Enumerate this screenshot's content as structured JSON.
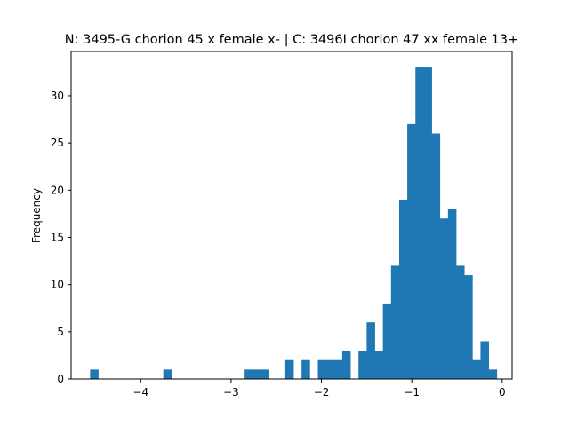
{
  "chart_data": {
    "type": "bar",
    "title": "N: 3495-G chorion 45 x female x- | C: 3496I chorion 47 xx female 13+",
    "xlabel": "",
    "ylabel": "Frequency",
    "xlim": [
      -4.77,
      0.11
    ],
    "ylim": [
      0,
      34.7
    ],
    "grid": false,
    "color": "#1f77b4",
    "xticks": [
      {
        "value": -4,
        "label": "−4"
      },
      {
        "value": -3,
        "label": "−3"
      },
      {
        "value": -2,
        "label": "−2"
      },
      {
        "value": -1,
        "label": "−1"
      },
      {
        "value": 0,
        "label": "0"
      }
    ],
    "yticks": [
      {
        "value": 0,
        "label": "0"
      },
      {
        "value": 5,
        "label": "5"
      },
      {
        "value": 10,
        "label": "10"
      },
      {
        "value": 15,
        "label": "15"
      },
      {
        "value": 20,
        "label": "20"
      },
      {
        "value": 25,
        "label": "25"
      },
      {
        "value": 30,
        "label": "30"
      }
    ],
    "bin_edges": [
      -4.56,
      -4.47,
      -4.38,
      -4.29,
      -4.2,
      -4.11,
      -4.02,
      -3.93,
      -3.84,
      -3.75,
      -3.66,
      -3.57,
      -3.48,
      -3.39,
      -3.3,
      -3.21,
      -3.12,
      -3.03,
      -2.94,
      -2.85,
      -2.76,
      -2.67,
      -2.58,
      -2.49,
      -2.4,
      -2.31,
      -2.22,
      -2.13,
      -2.04,
      -1.95,
      -1.86,
      -1.77,
      -1.68,
      -1.59,
      -1.5,
      -1.41,
      -1.32,
      -1.23,
      -1.14,
      -1.05,
      -0.96,
      -0.87,
      -0.78,
      -0.69,
      -0.6,
      -0.51,
      -0.42,
      -0.33,
      -0.24,
      -0.15,
      -0.06
    ],
    "values": [
      1,
      0,
      0,
      0,
      0,
      0,
      0,
      0,
      0,
      1,
      0,
      0,
      0,
      0,
      0,
      0,
      0,
      0,
      0,
      1,
      1,
      1,
      0,
      0,
      2,
      0,
      2,
      0,
      2,
      2,
      2,
      3,
      0,
      3,
      6,
      3,
      8,
      12,
      19,
      27,
      33,
      33,
      26,
      17,
      18,
      12,
      11,
      2,
      4,
      1
    ]
  }
}
